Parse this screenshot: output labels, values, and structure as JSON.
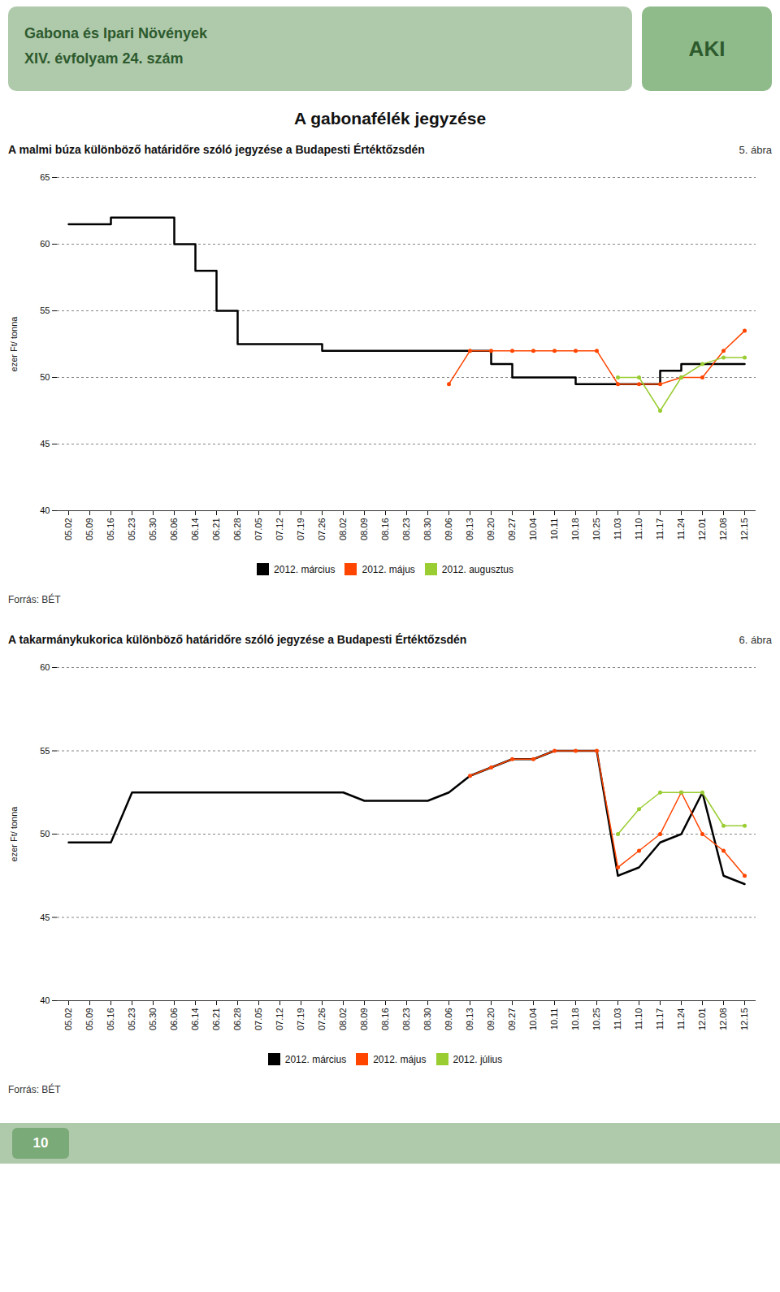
{
  "title": "A gabonafélék jegyzése",
  "annotations": [
    "Gabona és Ipari Növények",
    "XIV. évfolyam 24. szám",
    "AKI",
    "10"
  ],
  "chart_data": [
    {
      "type": "line",
      "title": "A malmi búza különböző határidőre szóló jegyzése a Budapesti Értéktőzsdén",
      "annotations": [
        "5. ábra",
        "Forrás: BÉT"
      ],
      "ylabel": "ezer Ft/ tonna",
      "categories": [
        "05.02",
        "05.09",
        "05.16",
        "05.23",
        "05.30",
        "06.06",
        "06.14",
        "06.21",
        "06.28",
        "07.05",
        "07.12",
        "07.19",
        "07.26",
        "08.02",
        "08.09",
        "08.16",
        "08.23",
        "08.30",
        "09.06",
        "09.13",
        "09.20",
        "09.27",
        "10.04",
        "10.11",
        "10.18",
        "10.25",
        "11.03",
        "11.10",
        "11.17",
        "11.24",
        "12.01",
        "12.08",
        "12.15"
      ],
      "ylim": [
        40,
        65
      ],
      "yticks": [
        40,
        45,
        50,
        55,
        60,
        65
      ],
      "grid": true,
      "legend": "bottom",
      "series": [
        {
          "name": "2012. március",
          "color": "#000000",
          "type": "step",
          "values": [
            61.5,
            61.5,
            62.0,
            62.0,
            62.0,
            60.0,
            58.0,
            55.0,
            52.5,
            52.5,
            52.5,
            52.5,
            52.0,
            52.0,
            52.0,
            52.0,
            52.0,
            52.0,
            52.0,
            52.0,
            51.0,
            50.0,
            50.0,
            50.0,
            49.5,
            49.5,
            49.5,
            49.5,
            50.5,
            51.0,
            51.0,
            51.0,
            51.0
          ]
        },
        {
          "name": "2012. május",
          "color": "#ff4500",
          "type": "line",
          "marker": "circle",
          "values": [
            null,
            null,
            null,
            null,
            null,
            null,
            null,
            null,
            null,
            null,
            null,
            null,
            null,
            null,
            null,
            null,
            null,
            null,
            49.5,
            52.0,
            52.0,
            52.0,
            52.0,
            52.0,
            52.0,
            52.0,
            49.5,
            49.5,
            49.5,
            50.0,
            50.0,
            52.0,
            53.5
          ]
        },
        {
          "name": "2012. augusztus",
          "color": "#9acd32",
          "type": "line",
          "marker": "circle",
          "values": [
            null,
            null,
            null,
            null,
            null,
            null,
            null,
            null,
            null,
            null,
            null,
            null,
            null,
            null,
            null,
            null,
            null,
            null,
            null,
            null,
            null,
            null,
            null,
            null,
            null,
            null,
            50.0,
            50.0,
            47.5,
            50.0,
            51.0,
            51.5,
            51.5
          ]
        }
      ]
    },
    {
      "type": "line",
      "title": "A takarmánykukorica különböző határidőre szóló jegyzése a Budapesti Értéktőzsdén",
      "annotations": [
        "6. ábra",
        "Forrás: BÉT"
      ],
      "ylabel": "ezer Ft/ tonna",
      "categories": [
        "05.02",
        "05.09",
        "05.16",
        "05.23",
        "05.30",
        "06.06",
        "06.14",
        "06.21",
        "06.28",
        "07.05",
        "07.12",
        "07.19",
        "07.26",
        "08.02",
        "08.09",
        "08.16",
        "08.23",
        "08.30",
        "09.06",
        "09.13",
        "09.20",
        "09.27",
        "10.04",
        "10.11",
        "10.18",
        "10.25",
        "11.03",
        "11.10",
        "11.17",
        "11.24",
        "12.01",
        "12.08",
        "12.15"
      ],
      "ylim": [
        40,
        60
      ],
      "yticks": [
        40,
        45,
        50,
        55,
        60
      ],
      "grid": true,
      "legend": "bottom",
      "series": [
        {
          "name": "2012. március",
          "color": "#000000",
          "type": "line",
          "values": [
            49.5,
            49.5,
            49.5,
            52.5,
            52.5,
            52.5,
            52.5,
            52.5,
            52.5,
            52.5,
            52.5,
            52.5,
            52.5,
            52.5,
            52.0,
            52.0,
            52.0,
            52.0,
            52.5,
            53.5,
            54.0,
            54.5,
            54.5,
            55.0,
            55.0,
            55.0,
            47.5,
            48.0,
            49.5,
            50.0,
            52.5,
            47.5,
            47.0
          ]
        },
        {
          "name": "2012. május",
          "color": "#ff4500",
          "type": "line",
          "marker": "circle",
          "values": [
            null,
            null,
            null,
            null,
            null,
            null,
            null,
            null,
            null,
            null,
            null,
            null,
            null,
            null,
            null,
            null,
            null,
            null,
            null,
            53.5,
            54.0,
            54.5,
            54.5,
            55.0,
            55.0,
            55.0,
            48.0,
            49.0,
            50.0,
            52.5,
            50.0,
            49.0,
            47.5
          ]
        },
        {
          "name": "2012. július",
          "color": "#9acd32",
          "type": "line",
          "marker": "circle",
          "values": [
            null,
            null,
            null,
            null,
            null,
            null,
            null,
            null,
            null,
            null,
            null,
            null,
            null,
            null,
            null,
            null,
            null,
            null,
            null,
            null,
            null,
            null,
            null,
            null,
            null,
            null,
            50.0,
            51.5,
            52.5,
            52.5,
            52.5,
            50.5,
            50.5
          ]
        }
      ]
    }
  ]
}
